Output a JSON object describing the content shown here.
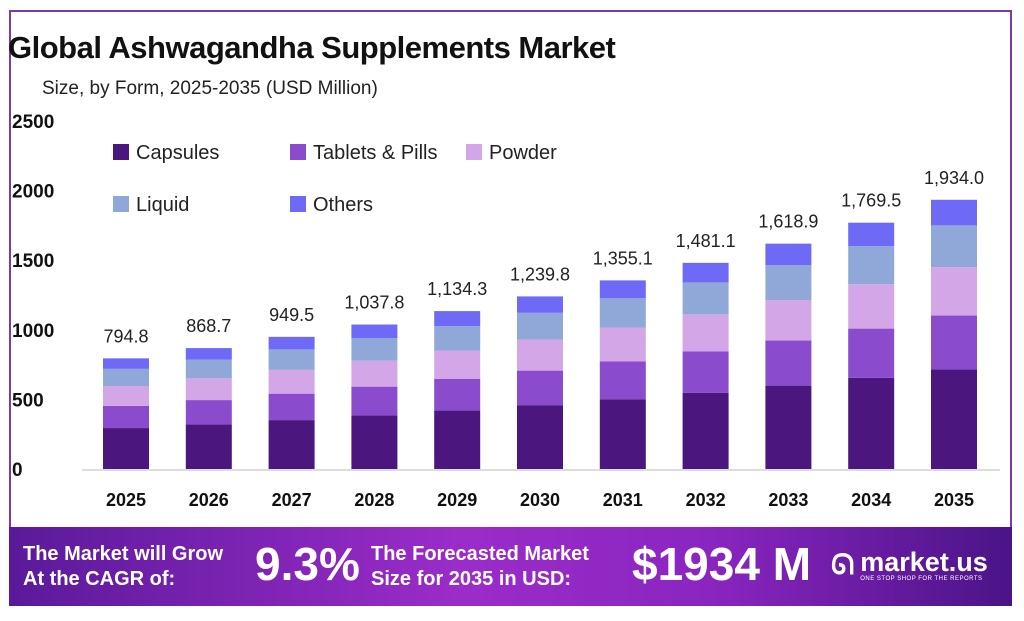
{
  "chart_data": {
    "type": "bar",
    "stacked": true,
    "title": "Global Ashwagandha Supplements Market",
    "subtitle": "Size, by Form, 2025-2035 (USD Million)",
    "categories": [
      "2025",
      "2026",
      "2027",
      "2028",
      "2029",
      "2030",
      "2031",
      "2032",
      "2033",
      "2034",
      "2035"
    ],
    "totals": [
      "794.8",
      "868.7",
      "949.5",
      "1,037.8",
      "1,134.3",
      "1,239.8",
      "1,355.1",
      "1,481.1",
      "1,618.9",
      "1,769.5",
      "1,934.0"
    ],
    "series": [
      {
        "name": "Capsules",
        "color": "#4b167d",
        "values": [
          294.1,
          321.4,
          351.3,
          384.0,
          419.7,
          458.7,
          501.4,
          548.0,
          599.0,
          654.7,
          715.6
        ]
      },
      {
        "name": "Tablets & Pills",
        "color": "#8a4ccc",
        "values": [
          159.0,
          173.7,
          189.9,
          207.6,
          226.9,
          248.0,
          271.0,
          296.2,
          323.8,
          353.9,
          386.8
        ]
      },
      {
        "name": "Powder",
        "color": "#d3a6e8",
        "values": [
          143.1,
          156.4,
          170.9,
          186.8,
          204.2,
          223.2,
          243.9,
          266.6,
          291.4,
          318.5,
          348.1
        ]
      },
      {
        "name": "Liquid",
        "color": "#8fa8d8",
        "values": [
          123.2,
          134.6,
          147.2,
          160.9,
          175.8,
          192.2,
          210.0,
          229.6,
          250.9,
          274.3,
          299.8
        ]
      },
      {
        "name": "Others",
        "color": "#6f6af5",
        "values": [
          75.5,
          82.5,
          90.2,
          98.6,
          107.8,
          117.8,
          128.7,
          140.7,
          153.8,
          168.1,
          183.7
        ]
      }
    ],
    "yticks": [
      "0",
      "500",
      "1000",
      "1500",
      "2000",
      "2500"
    ],
    "ylim": [
      0,
      2500
    ],
    "grid": false,
    "legend": "top-left"
  },
  "banner": {
    "cagr_text_1": "The Market will Grow",
    "cagr_text_2": "At the CAGR of:",
    "cagr_value": "9.3%",
    "forecast_text_1": "The Forecasted Market",
    "forecast_text_2": "Size for 2035 in USD:",
    "forecast_value": "$1934 M",
    "logo_text": "market.us",
    "logo_tagline": "ONE STOP SHOP FOR THE REPORTS"
  }
}
